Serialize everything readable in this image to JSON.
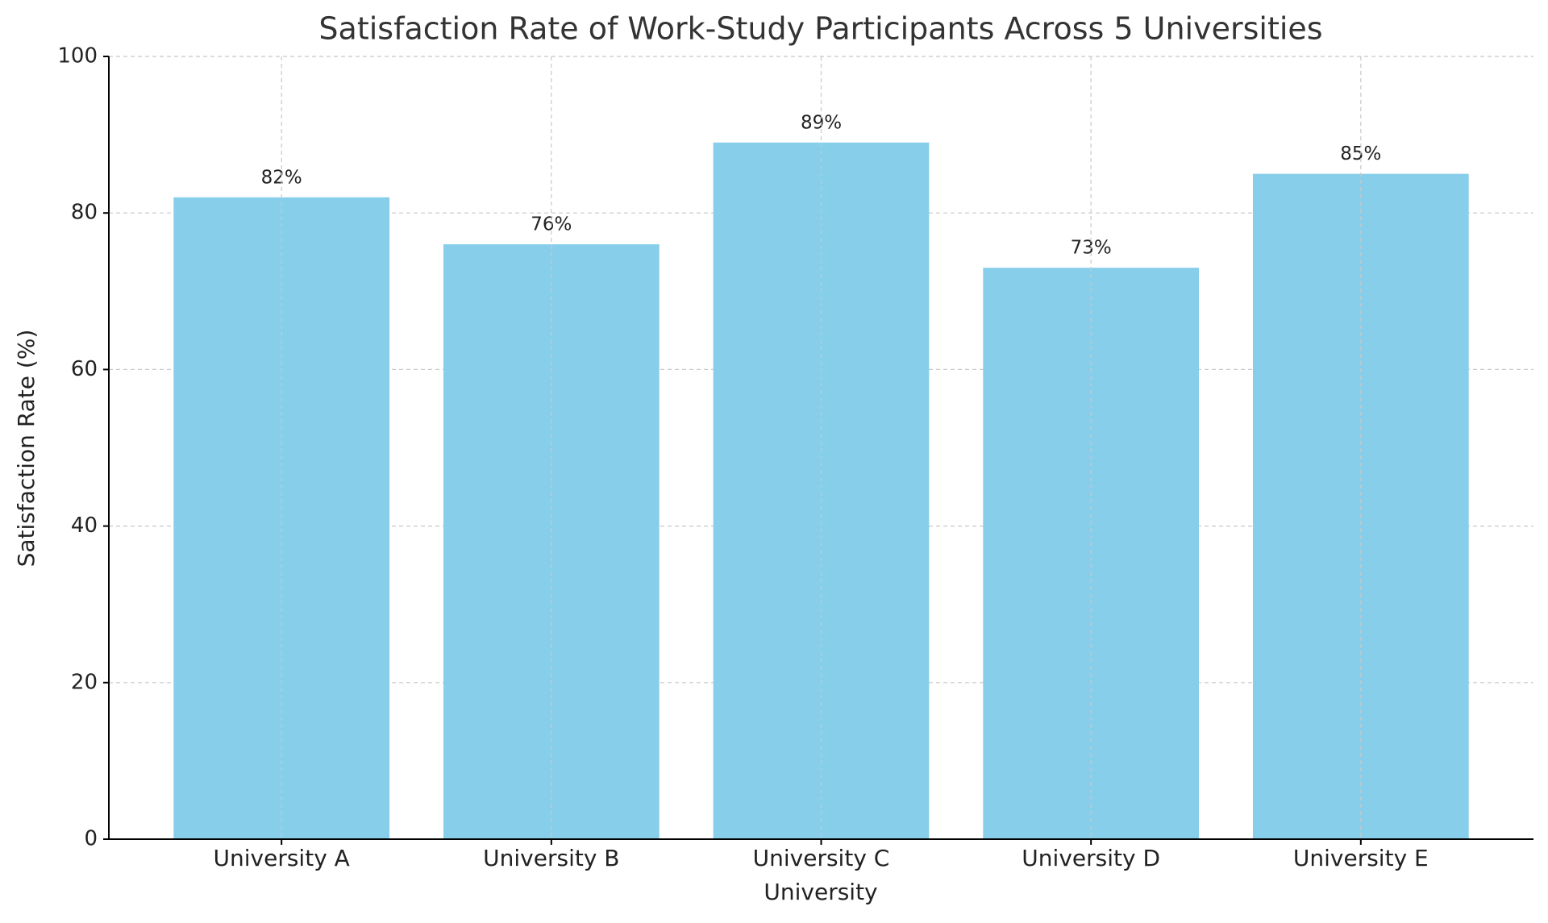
{
  "chart_data": {
    "type": "bar",
    "title": "Satisfaction Rate of Work-Study Participants Across 5 Universities",
    "xlabel": "University",
    "ylabel": "Satisfaction Rate (%)",
    "categories": [
      "University A",
      "University B",
      "University C",
      "University D",
      "University E"
    ],
    "values": [
      82,
      76,
      89,
      73,
      85
    ],
    "value_labels": [
      "82%",
      "76%",
      "89%",
      "73%",
      "85%"
    ],
    "color": "#87ceeb",
    "ylim": [
      0,
      100
    ],
    "yticks": [
      0,
      20,
      40,
      60,
      80,
      100
    ],
    "grid": true
  }
}
